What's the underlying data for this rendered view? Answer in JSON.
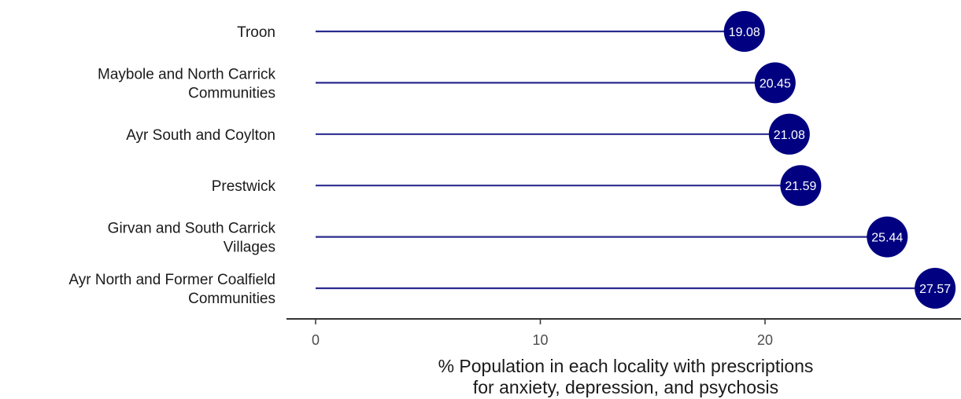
{
  "chart_data": {
    "type": "lollipop",
    "orientation": "horizontal",
    "categories": [
      [
        "Troon"
      ],
      [
        "Maybole and North Carrick",
        "Communities"
      ],
      [
        "Ayr South and Coylton"
      ],
      [
        "Prestwick"
      ],
      [
        "Girvan and South Carrick",
        "Villages"
      ],
      [
        "Ayr North and Former Coalfield",
        "Communities"
      ]
    ],
    "values": [
      19.08,
      20.45,
      21.08,
      21.59,
      25.44,
      27.57
    ],
    "value_labels": [
      "19.08",
      "20.45",
      "21.08",
      "21.59",
      "25.44",
      "27.57"
    ],
    "highlight_index": 2,
    "xlabel": [
      "% Population in each locality with prescriptions",
      "for anxiety, depression, and psychosis"
    ],
    "ylabel": "",
    "title": "",
    "xlim": [
      0,
      28
    ],
    "xticks": [
      0,
      10,
      20
    ],
    "xtick_labels": [
      "0",
      "10",
      "20"
    ],
    "grid": false,
    "legend": "none",
    "colors": {
      "segment": "#2b2b8f",
      "point": "#000080",
      "value_text": "#ffffff",
      "category_text": "#1a1a1a",
      "highlight_text": "#ff0000",
      "axis": "#333333",
      "tick_text": "#4d4d4d"
    }
  }
}
